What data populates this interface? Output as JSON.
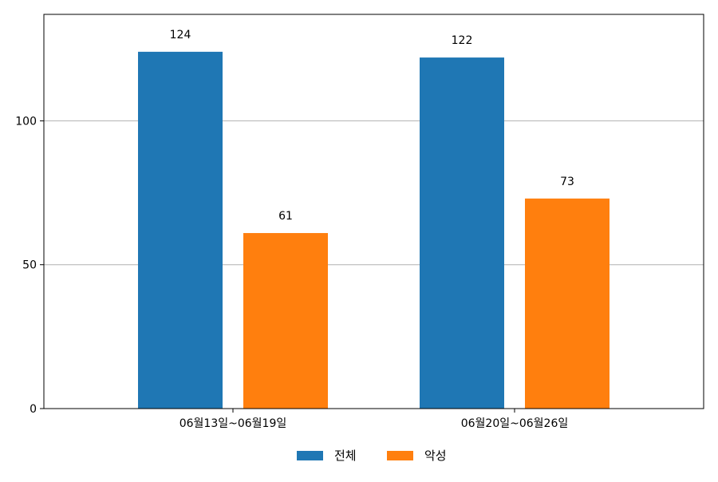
{
  "chart_data": {
    "type": "bar",
    "categories": [
      "06월13일~06월19일",
      "06월20일~06월26일"
    ],
    "series": [
      {
        "name": "전체",
        "values": [
          124,
          122
        ],
        "color": "#1f77b4"
      },
      {
        "name": "악성",
        "values": [
          61,
          73
        ],
        "color": "#ff7f0e"
      }
    ],
    "ylim": [
      0,
      137
    ],
    "yticks": [
      0,
      50,
      100
    ],
    "grid": true,
    "legend": "bottom-center",
    "xlabel": "",
    "ylabel": "",
    "title": ""
  }
}
